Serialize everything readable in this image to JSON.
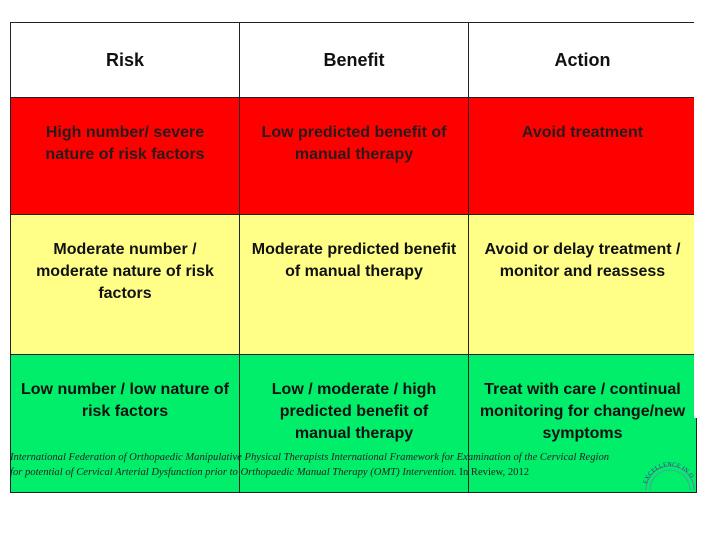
{
  "table": {
    "headers": [
      "Risk",
      "Benefit",
      "Action"
    ],
    "rows": [
      {
        "color": "#ff0000",
        "risk": "High number/ severe nature of risk factors",
        "benefit": "Low predicted benefit of manual therapy",
        "action": "Avoid treatment"
      },
      {
        "color": "#ffff88",
        "risk": "Moderate number / moderate nature of risk factors",
        "benefit": "Moderate predicted benefit of manual therapy",
        "action": "Avoid or delay treatment / monitor and reassess"
      },
      {
        "color": "#00ee6a",
        "risk": "Low number / low nature of risk factors",
        "benefit": "Low / moderate / high predicted benefit of manual therapy",
        "action": "Treat with care / continual monitoring for change/new symptoms"
      }
    ]
  },
  "citation": {
    "italic_line_1": "International Federation of Orthopaedic Manipulative Physical Therapists International Framework for Examination of the Cervical Region",
    "italic_line_2": "for potential of Cervical Arterial Dysfunction prior to Orthopaedic Manual Therapy (OMT) Intervention.",
    "plain_suffix": " In Review, 2012"
  },
  "logo": {
    "text": "EXCELLENCE IN O",
    "icon": "organization-seal-icon"
  }
}
